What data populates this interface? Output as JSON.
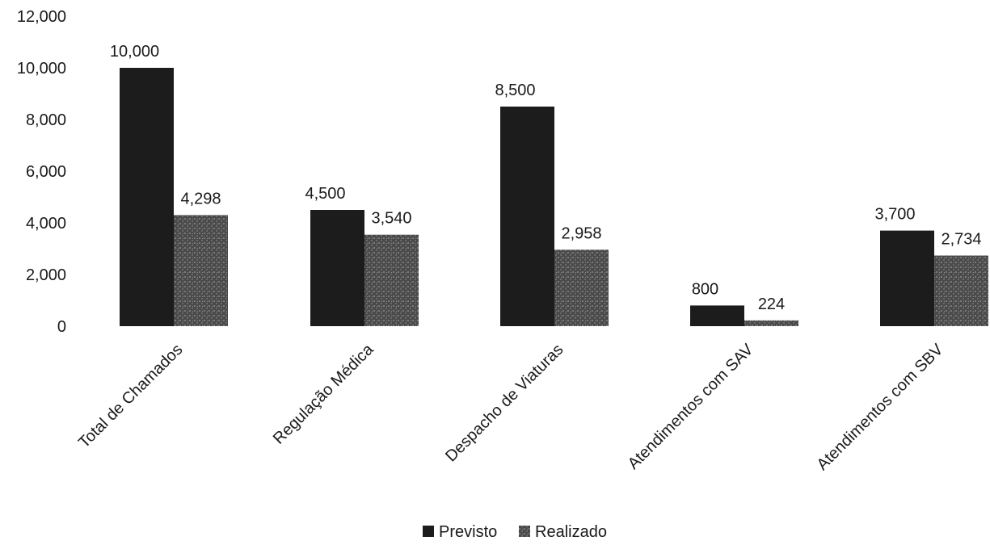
{
  "chart_data": {
    "type": "bar",
    "categories": [
      "Total de Chamados",
      "Regulação Médica",
      "Despacho de Viaturas",
      "Atendimentos com SAV",
      "Atendimentos com SBV"
    ],
    "series": [
      {
        "name": "Previsto",
        "values": [
          10000,
          4500,
          8500,
          800,
          3700
        ],
        "labels": [
          "10,000",
          "4,500",
          "8,500",
          "800",
          "3,700"
        ],
        "color": "#1c1c1c"
      },
      {
        "name": "Realizado",
        "values": [
          4298,
          3540,
          2958,
          224,
          2734
        ],
        "labels": [
          "4,298",
          "3,540",
          "2,958",
          "224",
          "2,734"
        ],
        "color": "#4a4a4a"
      }
    ],
    "ylim": [
      0,
      12000
    ],
    "yticks": [
      0,
      2000,
      4000,
      6000,
      8000,
      10000,
      12000
    ],
    "ytick_labels": [
      "0",
      "2,000",
      "4,000",
      "6,000",
      "8,000",
      "10,000",
      "12,000"
    ],
    "legend_position": "bottom",
    "grid": false,
    "title": "",
    "xlabel": "",
    "ylabel": ""
  }
}
